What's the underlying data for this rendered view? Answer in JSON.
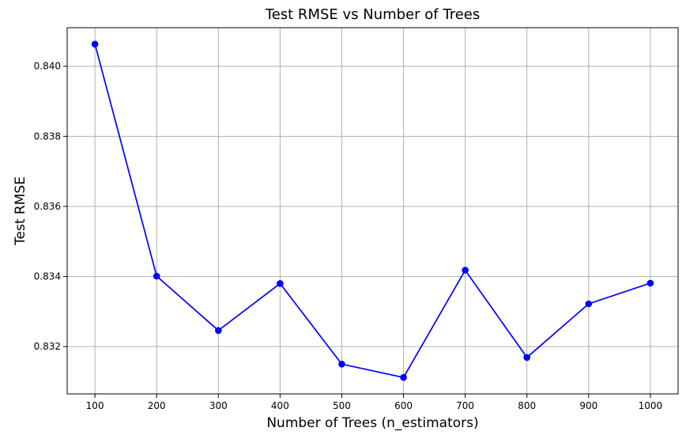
{
  "chart_data": {
    "type": "line",
    "title": "Test RMSE vs Number of Trees",
    "xlabel": "Number of Trees (n_estimators)",
    "ylabel": "Test RMSE",
    "x": [
      100,
      200,
      300,
      400,
      500,
      600,
      700,
      800,
      900,
      1000
    ],
    "series": [
      {
        "values": [
          0.84063,
          0.83401,
          0.83246,
          0.8338,
          0.8315,
          0.83112,
          0.83418,
          0.83169,
          0.83322,
          0.83381
        ],
        "color": "#0000ff",
        "marker": "circle"
      }
    ],
    "xticks": [
      100,
      200,
      300,
      400,
      500,
      600,
      700,
      800,
      900,
      1000
    ],
    "xtick_labels": [
      "100",
      "200",
      "300",
      "400",
      "500",
      "600",
      "700",
      "800",
      "900",
      "1000"
    ],
    "yticks": [
      0.832,
      0.834,
      0.836,
      0.838,
      0.84
    ],
    "ytick_labels": [
      "0.832",
      "0.834",
      "0.836",
      "0.838",
      "0.840"
    ],
    "xlim": [
      55,
      1045
    ],
    "ylim": [
      0.83065,
      0.8411
    ],
    "grid": true,
    "grid_color": "#b0b0b0"
  }
}
